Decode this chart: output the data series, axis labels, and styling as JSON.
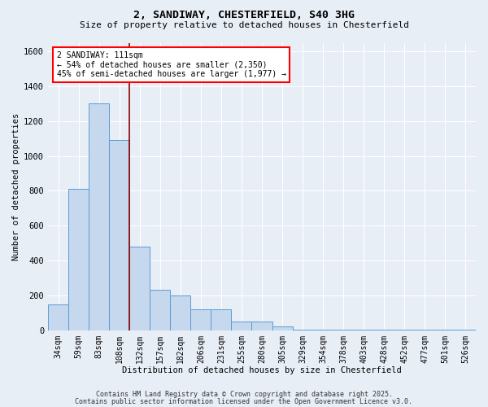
{
  "title": "2, SANDIWAY, CHESTERFIELD, S40 3HG",
  "subtitle": "Size of property relative to detached houses in Chesterfield",
  "xlabel": "Distribution of detached houses by size in Chesterfield",
  "ylabel": "Number of detached properties",
  "categories": [
    "34sqm",
    "59sqm",
    "83sqm",
    "108sqm",
    "132sqm",
    "157sqm",
    "182sqm",
    "206sqm",
    "231sqm",
    "255sqm",
    "280sqm",
    "305sqm",
    "329sqm",
    "354sqm",
    "378sqm",
    "403sqm",
    "428sqm",
    "452sqm",
    "477sqm",
    "501sqm",
    "526sqm"
  ],
  "values": [
    150,
    810,
    1300,
    1090,
    480,
    230,
    200,
    120,
    120,
    50,
    50,
    20,
    5,
    5,
    5,
    5,
    5,
    5,
    5,
    5,
    5
  ],
  "bar_color": "#c5d8ed",
  "bar_edge_color": "#5b9bd5",
  "background_color": "#e8eef6",
  "grid_color": "#ffffff",
  "vline_x": 3.5,
  "vline_color": "#8b0000",
  "ylim": [
    0,
    1650
  ],
  "yticks": [
    0,
    200,
    400,
    600,
    800,
    1000,
    1200,
    1400,
    1600
  ],
  "annotation_text": "2 SANDIWAY: 111sqm\n← 54% of detached houses are smaller (2,350)\n45% of semi-detached houses are larger (1,977) →",
  "footer_line1": "Contains HM Land Registry data © Crown copyright and database right 2025.",
  "footer_line2": "Contains public sector information licensed under the Open Government Licence v3.0."
}
